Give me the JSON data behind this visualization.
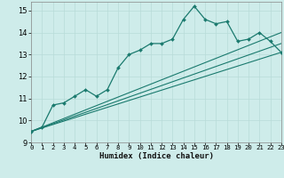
{
  "xlabel": "Humidex (Indice chaleur)",
  "xlim": [
    0,
    23
  ],
  "ylim": [
    9,
    15.4
  ],
  "yticks": [
    9,
    10,
    11,
    12,
    13,
    14,
    15
  ],
  "xticks": [
    0,
    1,
    2,
    3,
    4,
    5,
    6,
    7,
    8,
    9,
    10,
    11,
    12,
    13,
    14,
    15,
    16,
    17,
    18,
    19,
    20,
    21,
    22,
    23
  ],
  "bg_color": "#ceecea",
  "line_color": "#1a7a6e",
  "grid_major_color": "#b8dbd8",
  "grid_minor_color": "#d0eeec",
  "curve_x": [
    0,
    1,
    2,
    3,
    4,
    5,
    6,
    7,
    8,
    9,
    10,
    11,
    12,
    13,
    14,
    15,
    16,
    17,
    18,
    19,
    20,
    21,
    22,
    23
  ],
  "curve_y": [
    9.5,
    9.7,
    10.7,
    10.8,
    11.1,
    11.4,
    11.1,
    11.4,
    12.4,
    13.0,
    13.2,
    13.5,
    13.5,
    13.7,
    14.6,
    15.2,
    14.6,
    14.4,
    14.5,
    13.6,
    13.7,
    14.0,
    13.6,
    13.1
  ],
  "straight_lines": [
    {
      "x0": 0,
      "y0": 9.5,
      "x1": 23,
      "y1": 13.1
    },
    {
      "x0": 0,
      "y0": 9.5,
      "x1": 23,
      "y1": 13.5
    },
    {
      "x0": 0,
      "y0": 9.5,
      "x1": 23,
      "y1": 14.0
    }
  ],
  "marker": "D",
  "markersize": 2.0,
  "linewidth": 0.9,
  "straight_linewidth": 0.8
}
